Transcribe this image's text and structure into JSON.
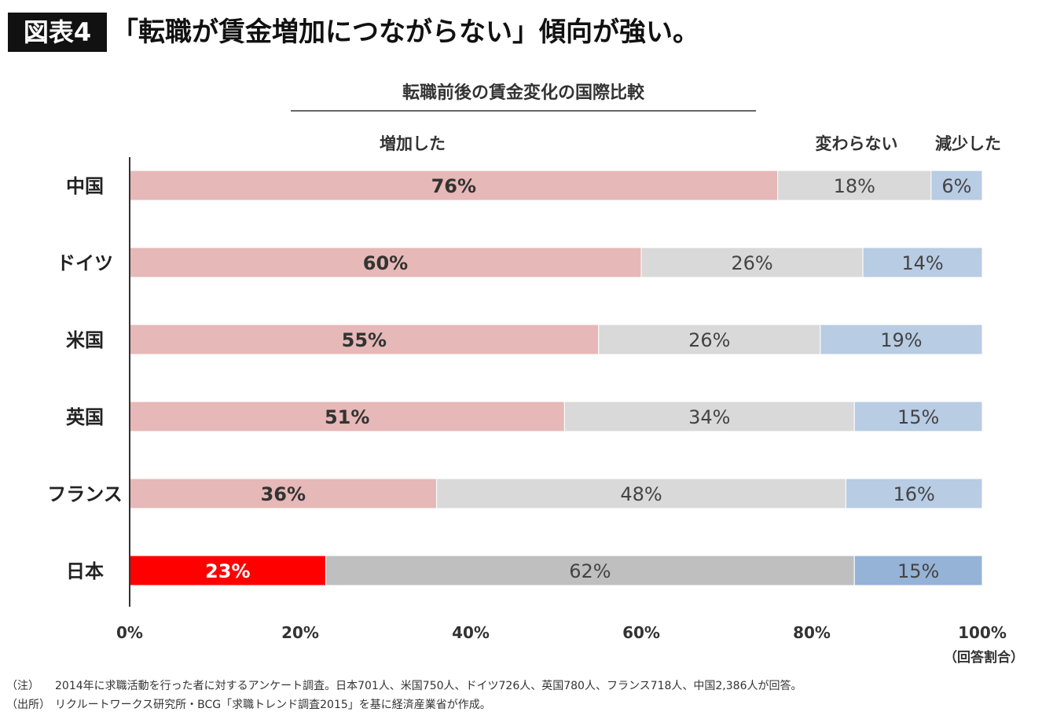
{
  "header": {
    "badge": "図表4",
    "headline": "「転職が賃金増加につながらない」傾向が強い。"
  },
  "chart_data": {
    "type": "bar",
    "orientation": "horizontal",
    "stacked": true,
    "title": "転職前後の賃金変化の国際比較",
    "categories": [
      "中国",
      "ドイツ",
      "米国",
      "英国",
      "フランス",
      "日本"
    ],
    "series": [
      {
        "name": "増加した",
        "values": [
          76,
          60,
          55,
          51,
          36,
          23
        ],
        "color": "#e6b8b7",
        "highlight_color": "#ff0000"
      },
      {
        "name": "変わらない",
        "values": [
          18,
          26,
          26,
          34,
          48,
          62
        ],
        "color": "#d9d9d9",
        "highlight_color": "#bfbfbf"
      },
      {
        "name": "減少した",
        "values": [
          6,
          14,
          19,
          15,
          16,
          15
        ],
        "color": "#b8cce4",
        "highlight_color": "#95b3d7"
      }
    ],
    "highlight_category": "日本",
    "xlim": [
      0,
      100
    ],
    "x_ticks": [
      "0%",
      "20%",
      "40%",
      "60%",
      "80%",
      "100%"
    ],
    "xlabel": "（回答割合）",
    "legend_placement": "top",
    "grid": false
  },
  "notes": [
    {
      "label": "（注）",
      "text": "2014年に求職活動を行った者に対するアンケート調査。日本701人、米国750人、ドイツ726人、英国780人、フランス718人、中国2,386人が回答。"
    },
    {
      "label": "（出所）",
      "text": "リクルートワークス研究所・BCG「求職トレンド調査2015」を基に経済産業省が作成。"
    }
  ]
}
